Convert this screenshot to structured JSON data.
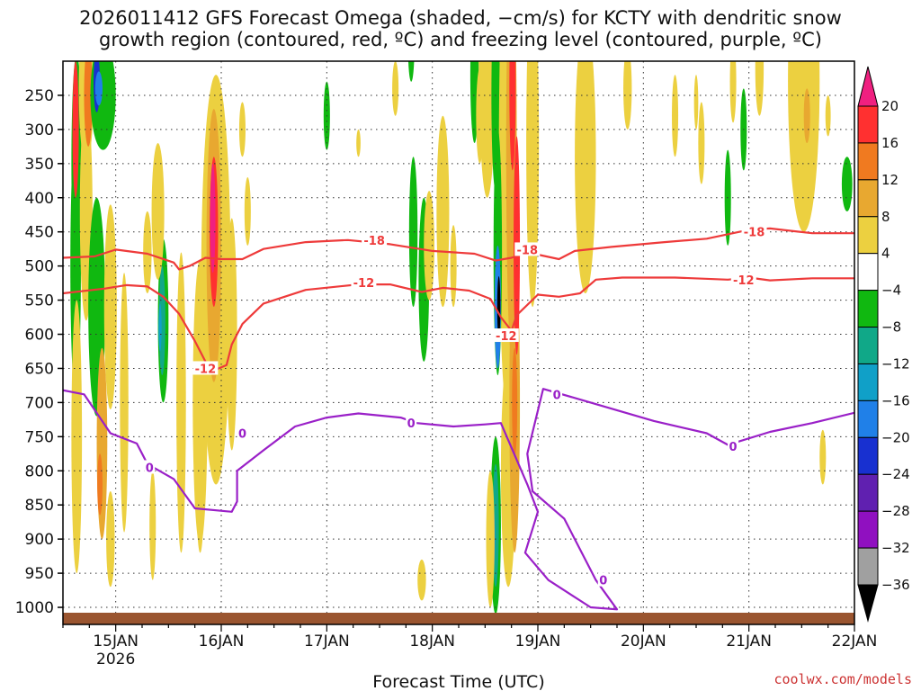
{
  "chart_data": {
    "type": "heatmap",
    "title_lines": [
      "2026011412 GFS Forecast Omega (shaded, −cm/s) for KCTY with dendritic snow",
      "growth region (contoured, red, ºC) and freezing level (contoured, purple, ºC)"
    ],
    "xlabel": "Forecast Time (UTC)",
    "credit": "coolwx.com/models",
    "x_ticks": [
      {
        "day": 15,
        "label": "15JAN",
        "sub": "2026"
      },
      {
        "day": 16,
        "label": "16JAN",
        "sub": ""
      },
      {
        "day": 17,
        "label": "17JAN",
        "sub": ""
      },
      {
        "day": 18,
        "label": "18JAN",
        "sub": ""
      },
      {
        "day": 19,
        "label": "19JAN",
        "sub": ""
      },
      {
        "day": 20,
        "label": "20JAN",
        "sub": ""
      },
      {
        "day": 21,
        "label": "21JAN",
        "sub": ""
      },
      {
        "day": 22,
        "label": "22JAN",
        "sub": ""
      }
    ],
    "xlim": [
      14.5,
      22.0
    ],
    "y_ticks": [
      250,
      300,
      350,
      400,
      450,
      500,
      550,
      600,
      650,
      700,
      750,
      800,
      850,
      900,
      950,
      1000
    ],
    "ylim": [
      200,
      1025
    ],
    "colorbar": {
      "labels": [
        "20",
        "16",
        "12",
        "8",
        "4",
        "−4",
        "−8",
        "−12",
        "−16",
        "−20",
        "−24",
        "−28",
        "−32",
        "−36"
      ],
      "colors": [
        "#f02080",
        "#ff3030",
        "#f07a20",
        "#e8a830",
        "#ecd040",
        "#ffffff",
        "#10b810",
        "#10a888",
        "#10a0c8",
        "#2080e8",
        "#1830d0",
        "#6020b0",
        "#9010c0",
        "#a0a0a0",
        "#000000"
      ]
    },
    "contours": [
      {
        "name": "-18",
        "color": "#ee3a3a",
        "points": [
          [
            14.5,
            488
          ],
          [
            14.8,
            486
          ],
          [
            15.0,
            476
          ],
          [
            15.3,
            482
          ],
          [
            15.55,
            495
          ],
          [
            15.6,
            505
          ],
          [
            15.7,
            500
          ],
          [
            15.85,
            488
          ],
          [
            16.0,
            490
          ],
          [
            16.2,
            490
          ],
          [
            16.4,
            475
          ],
          [
            16.8,
            465
          ],
          [
            17.2,
            462
          ],
          [
            17.6,
            468
          ],
          [
            18.0,
            478
          ],
          [
            18.4,
            482
          ],
          [
            18.6,
            492
          ],
          [
            18.75,
            488
          ],
          [
            18.9,
            480
          ],
          [
            19.2,
            490
          ],
          [
            19.35,
            478
          ],
          [
            19.7,
            472
          ],
          [
            20.2,
            465
          ],
          [
            20.6,
            460
          ],
          [
            21.0,
            447
          ],
          [
            21.2,
            445
          ],
          [
            21.6,
            452
          ],
          [
            22.0,
            452
          ]
        ],
        "labels": [
          [
            17.45,
            462,
            "-18"
          ],
          [
            18.9,
            476,
            "-18"
          ],
          [
            21.05,
            450,
            "-18"
          ]
        ]
      },
      {
        "name": "-12",
        "color": "#ee3a3a",
        "points": [
          [
            14.5,
            540
          ],
          [
            14.9,
            533
          ],
          [
            15.1,
            528
          ],
          [
            15.3,
            530
          ],
          [
            15.45,
            545
          ],
          [
            15.6,
            570
          ],
          [
            15.75,
            610
          ],
          [
            15.9,
            655
          ],
          [
            16.05,
            645
          ],
          [
            16.1,
            615
          ],
          [
            16.2,
            585
          ],
          [
            16.4,
            555
          ],
          [
            16.8,
            535
          ],
          [
            17.3,
            527
          ],
          [
            17.6,
            527
          ],
          [
            17.9,
            538
          ],
          [
            18.1,
            532
          ],
          [
            18.35,
            536
          ],
          [
            18.55,
            548
          ],
          [
            18.65,
            575
          ],
          [
            18.75,
            595
          ],
          [
            18.8,
            572
          ],
          [
            19.0,
            542
          ],
          [
            19.2,
            545
          ],
          [
            19.4,
            540
          ],
          [
            19.55,
            520
          ],
          [
            19.8,
            517
          ],
          [
            20.3,
            517
          ],
          [
            20.8,
            520
          ],
          [
            21.0,
            517
          ],
          [
            21.2,
            521
          ],
          [
            21.6,
            518
          ],
          [
            22.0,
            518
          ]
        ],
        "labels": [
          [
            15.85,
            650,
            "-12"
          ],
          [
            17.35,
            524,
            "-12"
          ],
          [
            18.7,
            602,
            "-12"
          ],
          [
            20.95,
            520,
            "-12"
          ]
        ]
      },
      {
        "name": "0",
        "color": "#9a20c8",
        "points": [
          [
            14.5,
            682
          ],
          [
            14.7,
            688
          ],
          [
            14.95,
            745
          ],
          [
            15.2,
            760
          ],
          [
            15.3,
            790
          ],
          [
            15.55,
            812
          ],
          [
            15.75,
            855
          ],
          [
            16.1,
            860
          ],
          [
            16.15,
            845
          ],
          [
            16.15,
            800
          ],
          [
            16.4,
            770
          ],
          [
            16.7,
            735
          ],
          [
            17.0,
            722
          ],
          [
            17.3,
            716
          ],
          [
            17.7,
            722
          ],
          [
            17.85,
            730
          ],
          [
            18.2,
            735
          ],
          [
            18.5,
            732
          ],
          [
            18.65,
            730
          ],
          [
            18.9,
            820
          ],
          [
            19.0,
            860
          ],
          [
            18.88,
            920
          ],
          [
            19.1,
            960
          ],
          [
            19.5,
            1000
          ],
          [
            19.75,
            1003
          ],
          [
            19.55,
            960
          ],
          [
            19.25,
            870
          ],
          [
            18.95,
            830
          ],
          [
            18.9,
            775
          ],
          [
            19.05,
            680
          ],
          [
            19.5,
            700
          ],
          [
            20.1,
            727
          ],
          [
            20.6,
            745
          ],
          [
            20.8,
            762
          ],
          [
            21.2,
            743
          ],
          [
            21.6,
            730
          ],
          [
            22.0,
            715
          ]
        ],
        "labels": [
          [
            15.32,
            795,
            "0"
          ],
          [
            16.2,
            745,
            "0"
          ],
          [
            17.8,
            730,
            "0"
          ],
          [
            19.18,
            688,
            "0"
          ],
          [
            19.62,
            960,
            "0"
          ],
          [
            20.85,
            764,
            "0"
          ]
        ]
      }
    ]
  }
}
